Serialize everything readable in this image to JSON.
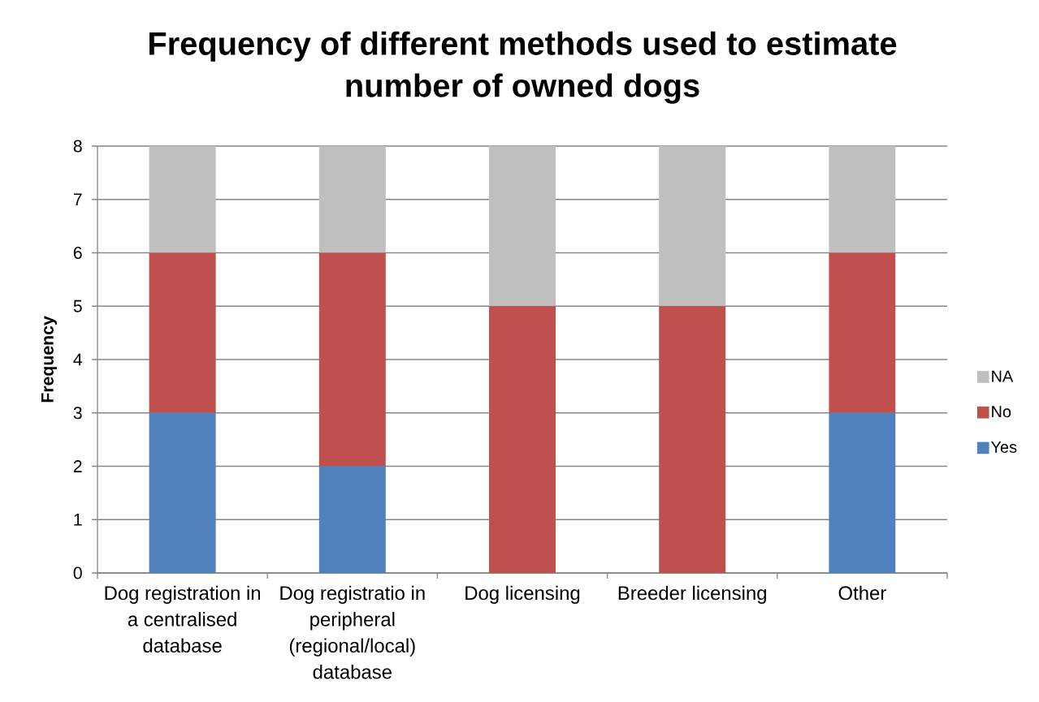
{
  "chart_data": {
    "type": "bar",
    "title": "Frequency of different methods used to estimate number of owned dogs",
    "ylabel": "Frequency",
    "categories": [
      "Dog registration in a centralised database",
      "Dog registratio in peripheral (regional/local) database",
      "Dog licensing",
      "Breeder licensing",
      "Other"
    ],
    "series": [
      {
        "name": "Yes",
        "color": "#4f81bd",
        "values": [
          3,
          2,
          0,
          0,
          3
        ]
      },
      {
        "name": "No",
        "color": "#c0504d",
        "values": [
          3,
          4,
          5,
          5,
          3
        ]
      },
      {
        "name": "NA",
        "color": "#bfbfbf",
        "values": [
          2,
          2,
          3,
          3,
          2
        ]
      }
    ],
    "stacked": true,
    "ylim": [
      0,
      8
    ],
    "yticks": [
      0,
      1,
      2,
      3,
      4,
      5,
      6,
      7,
      8
    ],
    "grid": "y",
    "legend": "right"
  }
}
